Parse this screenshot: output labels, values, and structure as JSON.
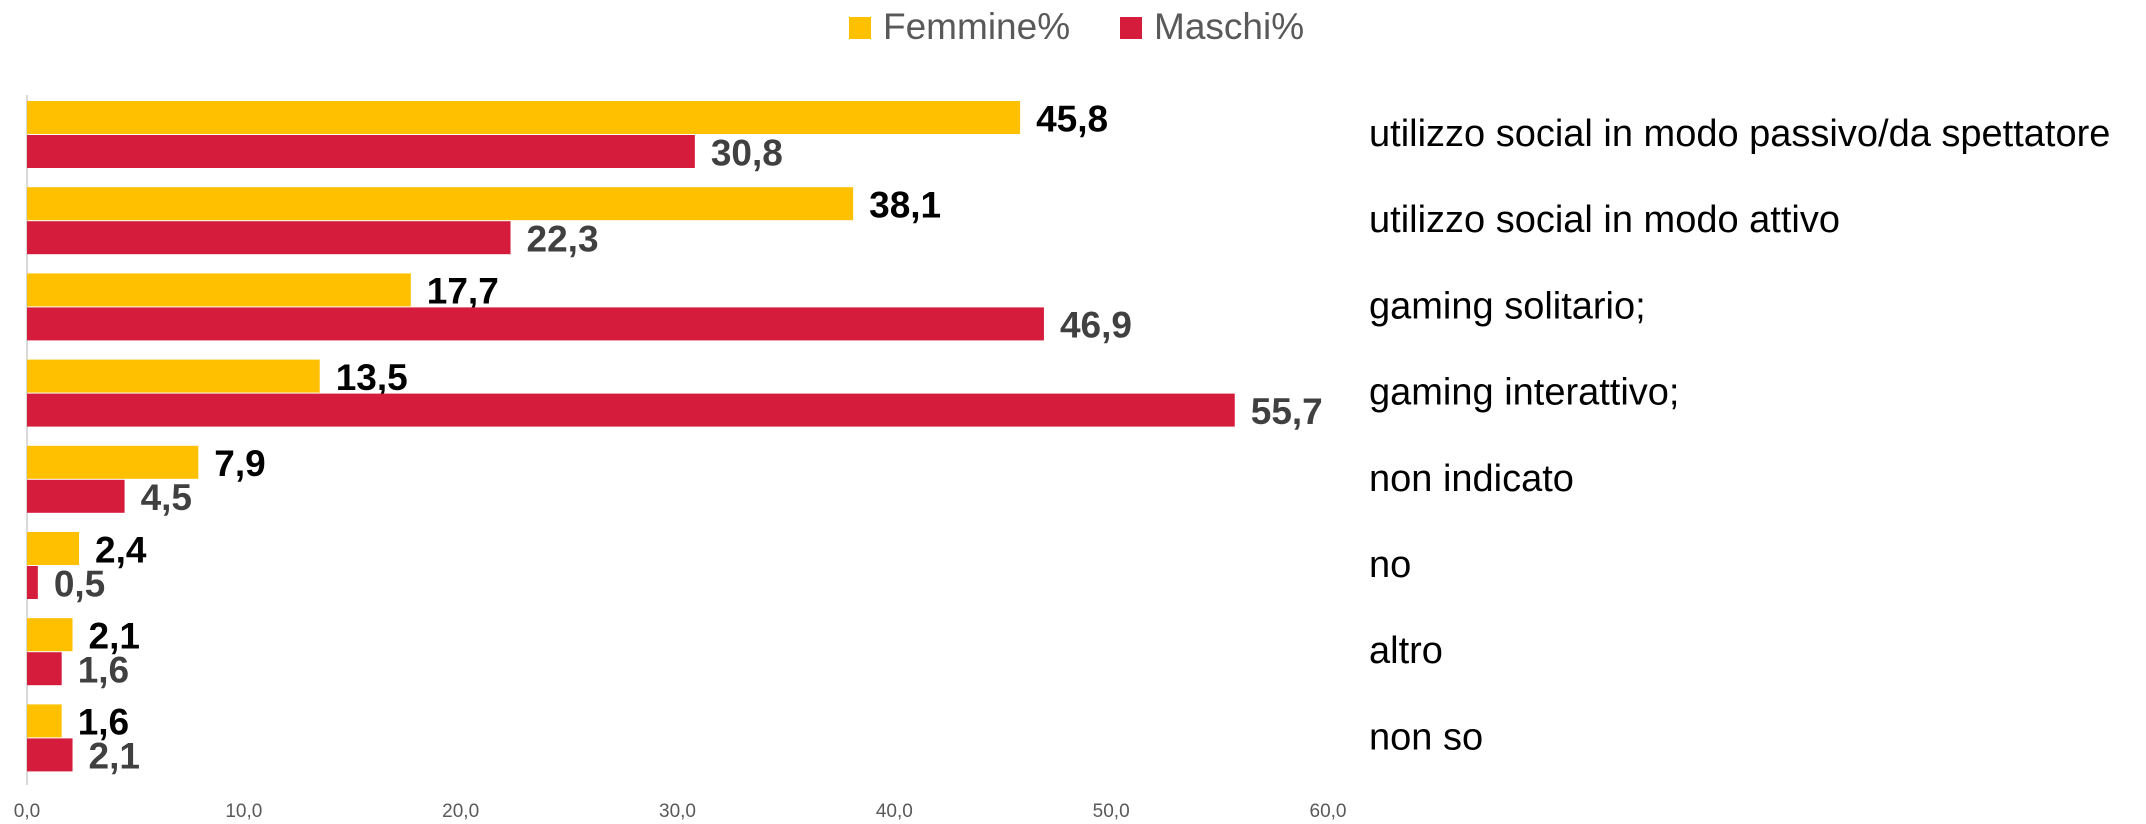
{
  "chart_data": {
    "type": "hbar",
    "categories": [
      "utilizzo social in modo passivo/da spettatore",
      "utilizzo social in modo attivo",
      "gaming solitario;",
      "gaming interattivo;",
      "non indicato",
      "no",
      "altro",
      "non so"
    ],
    "series": [
      {
        "name": "Femmine%",
        "color": "#FFC000",
        "values": [
          45.8,
          38.1,
          17.7,
          13.5,
          7.9,
          2.4,
          2.1,
          1.6
        ],
        "value_labels": [
          "45,8",
          "38,1",
          "17,7",
          "13,5",
          "7,9",
          "2,4",
          "2,1",
          "1,6"
        ]
      },
      {
        "name": "Maschi%",
        "color": "#D51C3C",
        "values": [
          30.8,
          22.3,
          46.9,
          55.7,
          4.5,
          0.5,
          1.6,
          2.1
        ],
        "value_labels": [
          "30,8",
          "22,3",
          "46,9",
          "55,7",
          "4,5",
          "0,5",
          "1,6",
          "2,1"
        ]
      }
    ],
    "xlim": [
      0,
      60
    ],
    "xticks": [
      {
        "value": 0,
        "label": "0,0"
      },
      {
        "value": 10,
        "label": "10,0"
      },
      {
        "value": 20,
        "label": "20,0"
      },
      {
        "value": 30,
        "label": "30,0"
      },
      {
        "value": 40,
        "label": "40,0"
      },
      {
        "value": 50,
        "label": "50,0"
      },
      {
        "value": 60,
        "label": "60,0"
      }
    ],
    "grid": false,
    "legend": "top"
  }
}
